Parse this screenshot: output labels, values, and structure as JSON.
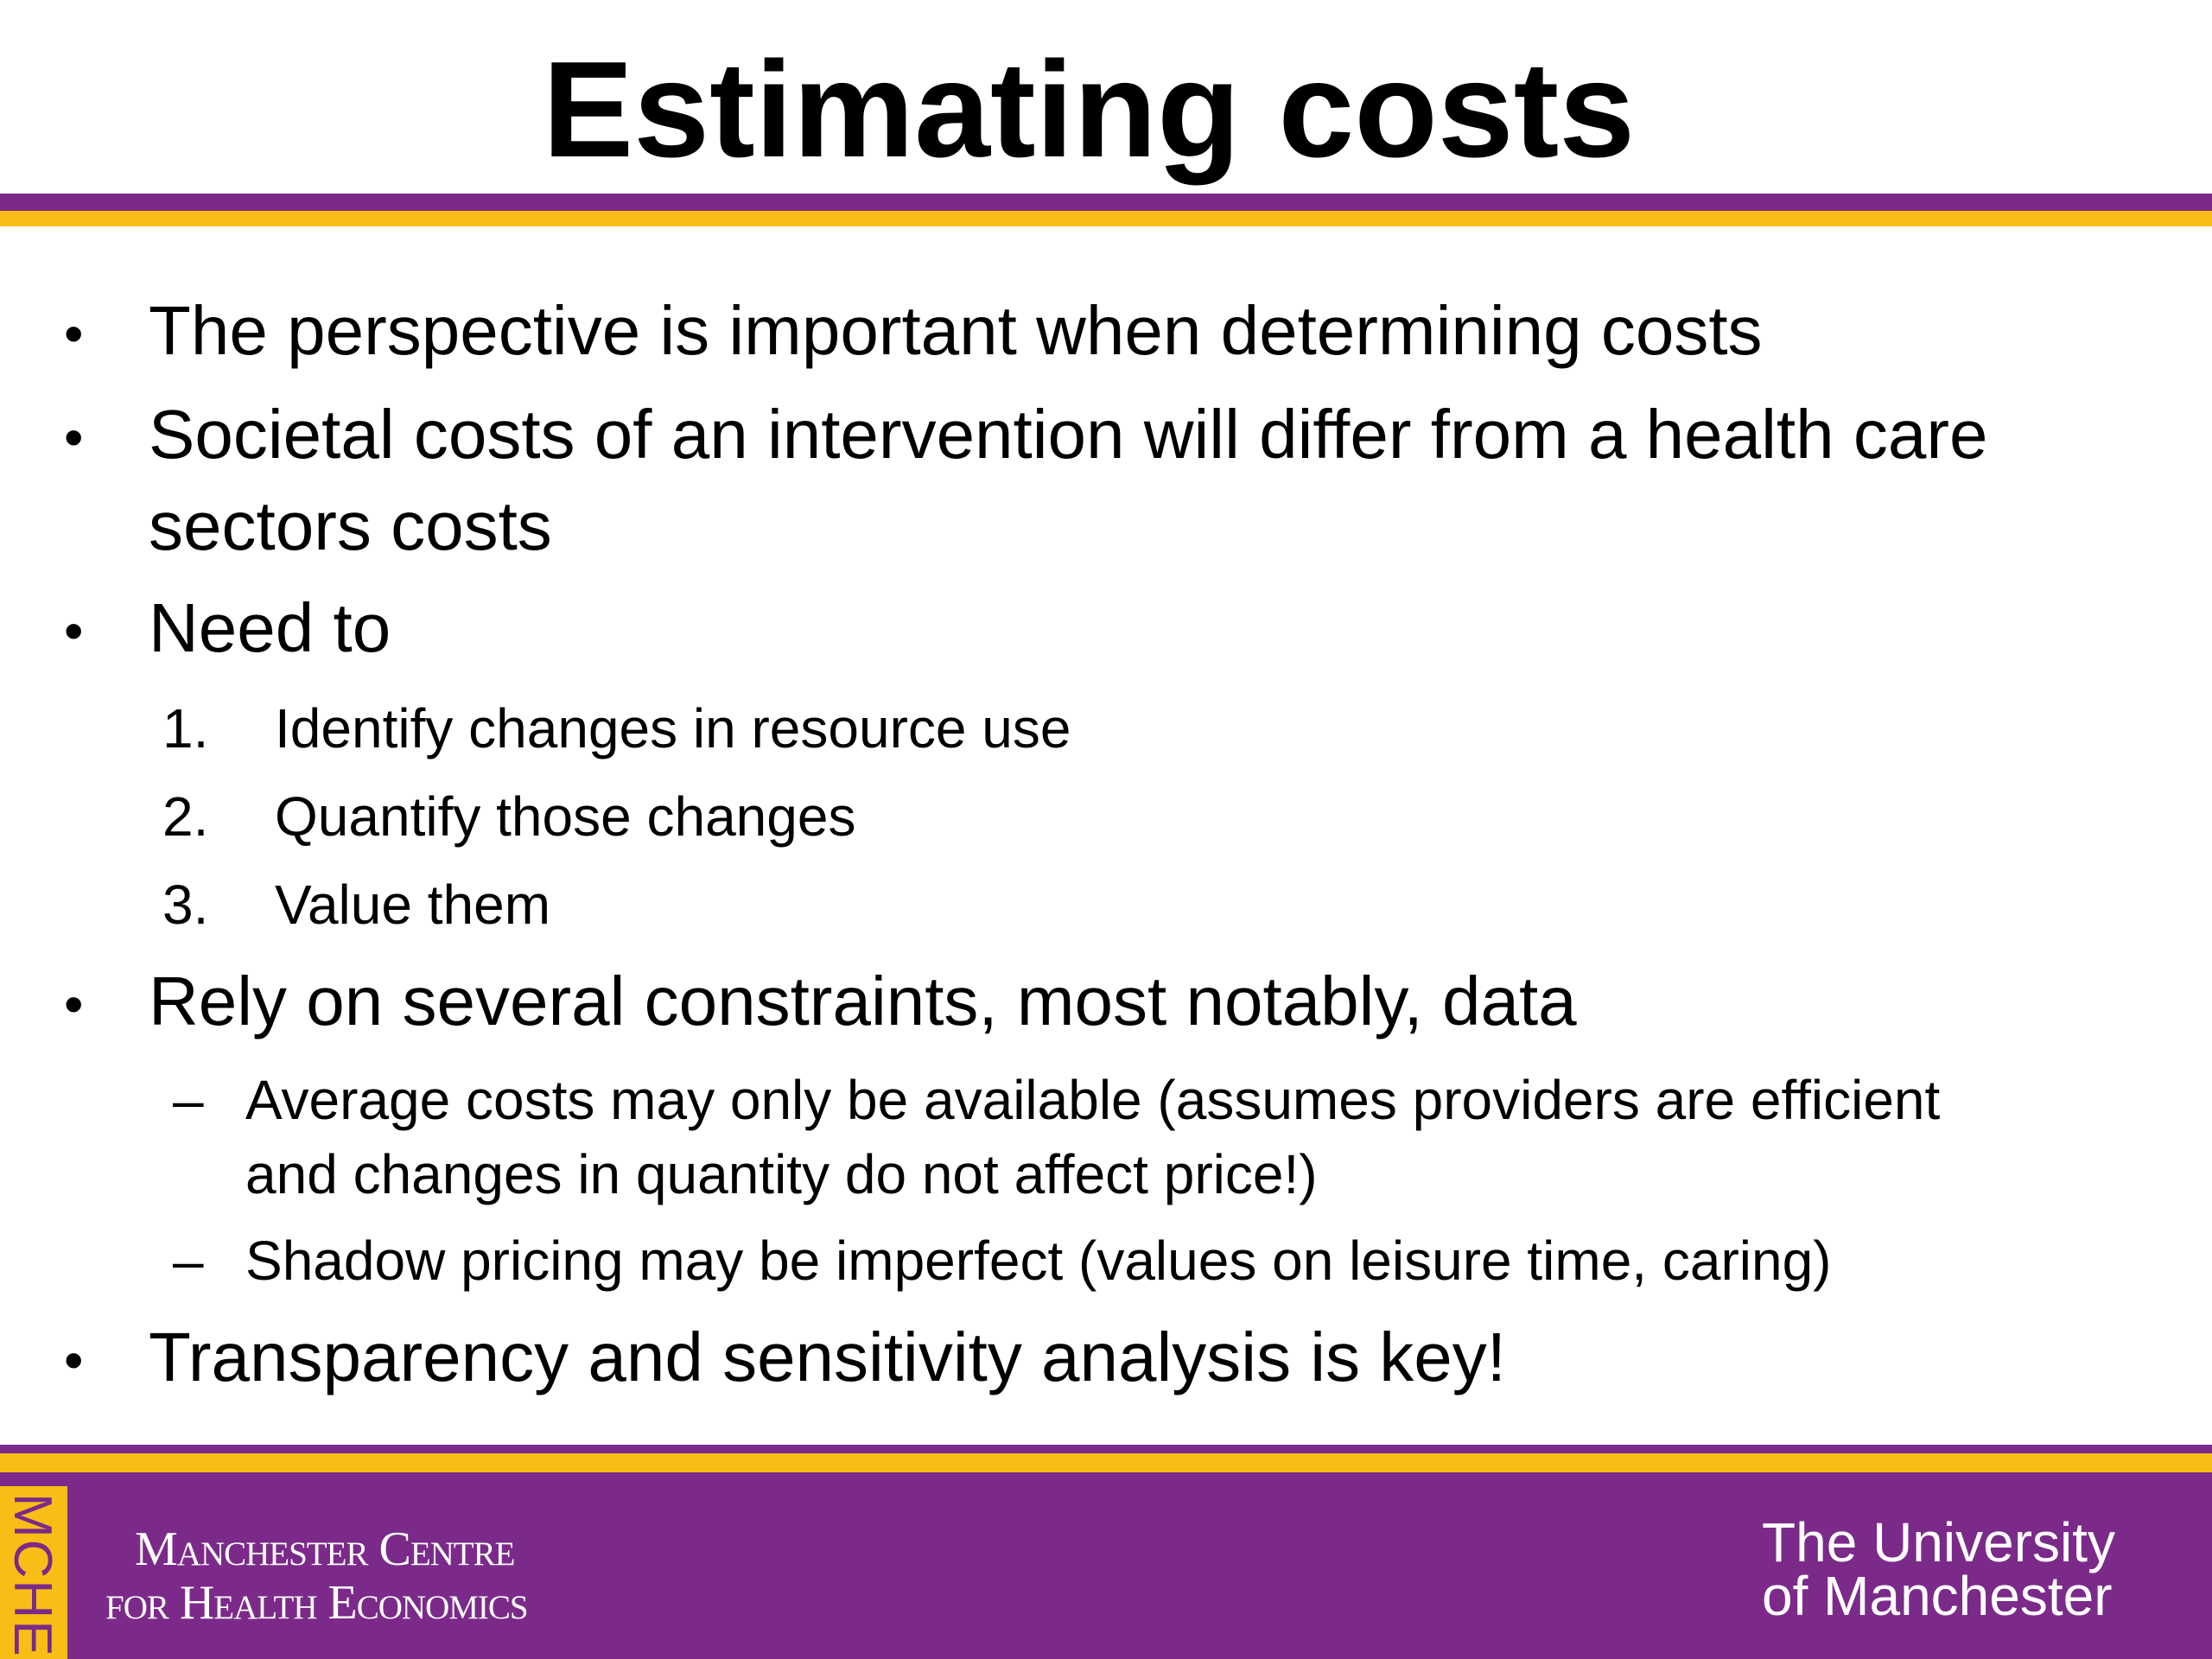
{
  "slide": {
    "title": "Estimating costs",
    "bullets": [
      {
        "text": "The perspective is important when determining costs"
      },
      {
        "text_lines": [
          "Societal costs of an intervention will differ from a health care",
          "sectors costs"
        ]
      },
      {
        "text": "Need to",
        "steps": [
          {
            "number": "1.",
            "text": "Identify changes in resource use"
          },
          {
            "number": "2.",
            "text": "Quantify those changes"
          },
          {
            "number": "3.",
            "text": "Value them"
          }
        ]
      },
      {
        "text": "Rely on several constraints, most notably, data",
        "subpoints": [
          {
            "text_lines": [
              "Average costs may only be available (assumes providers are efficient",
              "and changes in quantity do not affect price!)"
            ]
          },
          {
            "text_lines": [
              "Shadow pricing may be imperfect (values on leisure time, caring)"
            ]
          }
        ]
      },
      {
        "text": "Transparency and sensitivity analysis is key!"
      }
    ],
    "bullet_glyph": "•",
    "dash_glyph": "–"
  },
  "footer": {
    "tab_label": "MCHE",
    "centre_name_lines": [
      "Manchester Centre",
      "for Health Economics"
    ],
    "university_lines": [
      "The University",
      "of Manchester"
    ]
  },
  "colors": {
    "purple": "#7b2a8a",
    "gold": "#f8be15"
  }
}
